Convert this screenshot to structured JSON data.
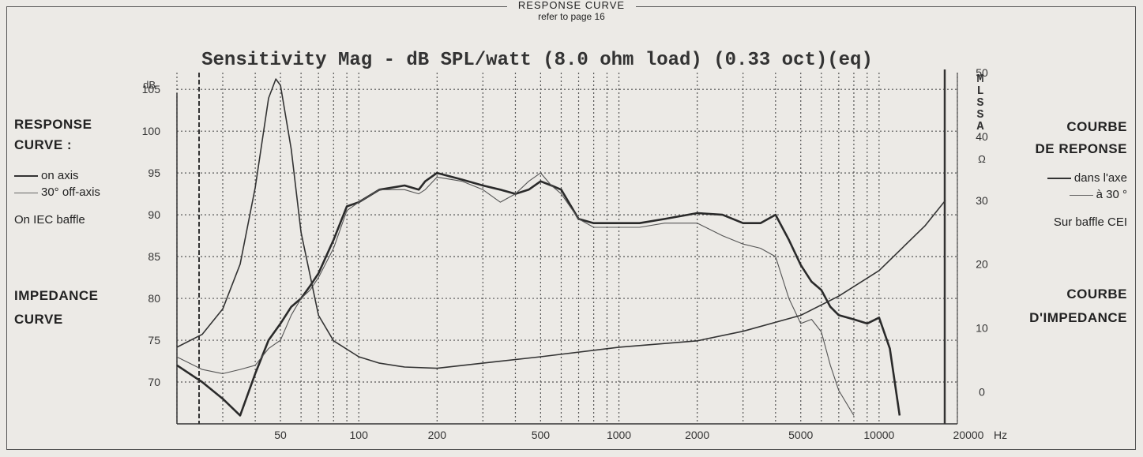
{
  "header": {
    "title": "RESPONSE CURVE",
    "subtitle": "refer to page 16"
  },
  "left_legend": {
    "response_title_line1": "RESPONSE",
    "response_title_line2": "CURVE :",
    "on_axis": "on axis",
    "off_axis": "30° off-axis",
    "baffle": "On IEC baffle",
    "impedance_line1": "IMPEDANCE",
    "impedance_line2": "CURVE"
  },
  "right_legend": {
    "response_title_line1": "COURBE",
    "response_title_line2": "DE REPONSE",
    "on_axis": "dans l'axe",
    "off_axis": "à 30 °",
    "baffle": "Sur baffle CEI",
    "impedance_line1": "COURBE",
    "impedance_line2": "D'IMPEDANCE"
  },
  "colors": {
    "ink": "#333333",
    "grid": "#555555",
    "background": "#eceae6"
  },
  "chart_data": {
    "type": "line",
    "title": "Sensitivity Mag - dB SPL/watt (8.0 ohm load) (0.33 oct)(eq)",
    "side_label": "MLSSA",
    "x_scale": "log",
    "xlim": [
      20,
      20000
    ],
    "x_tick_labels": [
      "50",
      "100",
      "200",
      "500",
      "1000",
      "2000",
      "5000",
      "10000",
      "20000"
    ],
    "x_tick_values": [
      50,
      100,
      200,
      500,
      1000,
      2000,
      5000,
      10000,
      20000
    ],
    "xlabel": "Hz",
    "ylabel": "dB",
    "ylim": [
      65,
      107
    ],
    "y_tick_values": [
      70,
      75,
      80,
      85,
      90,
      95,
      100,
      105
    ],
    "y2label": "Ω",
    "y2lim": [
      -5,
      50
    ],
    "y2_tick_values": [
      0,
      10,
      20,
      30,
      40,
      50
    ],
    "grid": true,
    "series": [
      {
        "name": "on axis",
        "axis": "y",
        "x": [
          20,
          25,
          30,
          35,
          40,
          45,
          50,
          55,
          60,
          65,
          70,
          80,
          90,
          100,
          120,
          150,
          170,
          180,
          200,
          250,
          300,
          350,
          400,
          450,
          500,
          550,
          600,
          700,
          800,
          1000,
          1200,
          1500,
          2000,
          2500,
          3000,
          3500,
          4000,
          4500,
          5000,
          5500,
          6000,
          6500,
          7000,
          8000,
          9000,
          10000,
          11000,
          12000
        ],
        "y": [
          72,
          70,
          68,
          66,
          71,
          75,
          77,
          79,
          80,
          81.5,
          83,
          87,
          91,
          91.5,
          93,
          93.5,
          93,
          94,
          95,
          94.2,
          93.5,
          93,
          92.5,
          93,
          94,
          93.5,
          93,
          89.5,
          89,
          89,
          89,
          89.5,
          90.2,
          90,
          89,
          89,
          90,
          87,
          84,
          82,
          81,
          79,
          78,
          77.5,
          77,
          77.7,
          74,
          66
        ]
      },
      {
        "name": "30° off-axis",
        "axis": "y",
        "x": [
          20,
          25,
          30,
          35,
          40,
          45,
          50,
          55,
          60,
          65,
          70,
          80,
          90,
          100,
          120,
          150,
          170,
          180,
          200,
          250,
          300,
          350,
          400,
          450,
          500,
          550,
          600,
          700,
          800,
          1000,
          1200,
          1500,
          2000,
          2500,
          3000,
          3500,
          4000,
          4500,
          5000,
          5500,
          6000,
          6500,
          7000,
          8000
        ],
        "y": [
          73,
          71.5,
          71,
          71.5,
          72,
          74,
          75,
          78,
          80,
          81,
          82.5,
          86,
          90.5,
          91.5,
          93,
          93,
          92.5,
          93,
          94.5,
          94,
          93,
          91.5,
          92.5,
          94,
          95,
          93.5,
          92.5,
          89.5,
          88.5,
          88.5,
          88.5,
          89,
          89,
          87.5,
          86.5,
          86,
          85,
          80,
          77,
          77.5,
          76,
          72,
          69,
          66
        ]
      },
      {
        "name": "impedance",
        "axis": "y2",
        "x": [
          20,
          25,
          30,
          35,
          40,
          45,
          48,
          50,
          55,
          60,
          70,
          80,
          100,
          120,
          150,
          200,
          300,
          500,
          1000,
          2000,
          3000,
          5000,
          7000,
          10000,
          15000,
          18000
        ],
        "y": [
          7,
          9,
          13,
          20,
          32,
          46,
          49,
          48,
          38,
          25,
          12,
          8,
          5.5,
          4.5,
          3.9,
          3.7,
          4.5,
          5.5,
          7,
          8,
          9.5,
          12,
          15,
          19,
          26,
          30
        ]
      }
    ]
  }
}
